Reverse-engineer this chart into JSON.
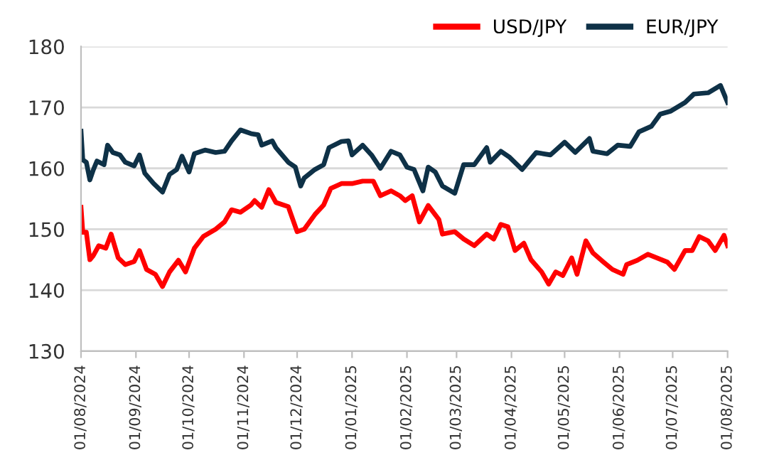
{
  "chart_data": {
    "type": "line",
    "legend": "top right",
    "grid": "y",
    "line_style": "solid",
    "marker": "none",
    "ylim": [
      130,
      180
    ],
    "yticks": [
      130,
      140,
      150,
      160,
      170,
      180
    ],
    "xlim": [
      "2024-08-01",
      "2025-08-01"
    ],
    "xticks": [
      {
        "value": "2024-08-01",
        "label": "01/08/2024"
      },
      {
        "value": "2024-09-01",
        "label": "01/09/2024"
      },
      {
        "value": "2024-10-01",
        "label": "01/10/2024"
      },
      {
        "value": "2024-11-01",
        "label": "01/11/2024"
      },
      {
        "value": "2024-12-01",
        "label": "01/12/2024"
      },
      {
        "value": "2025-01-01",
        "label": "01/01/2025"
      },
      {
        "value": "2025-02-01",
        "label": "01/02/2025"
      },
      {
        "value": "2025-03-01",
        "label": "01/03/2025"
      },
      {
        "value": "2025-04-01",
        "label": "01/04/2025"
      },
      {
        "value": "2025-05-01",
        "label": "01/05/2025"
      },
      {
        "value": "2025-06-01",
        "label": "01/06/2025"
      },
      {
        "value": "2025-07-01",
        "label": "01/07/2025"
      },
      {
        "value": "2025-08-01",
        "label": "01/08/2025"
      }
    ],
    "series": [
      {
        "name": "USD/JPY",
        "color": "#ff0000",
        "x": [
          "2024-08-01",
          "2024-08-02",
          "2024-08-04",
          "2024-08-06",
          "2024-08-08",
          "2024-08-11",
          "2024-08-15",
          "2024-08-18",
          "2024-08-22",
          "2024-08-26",
          "2024-08-31",
          "2024-09-03",
          "2024-09-07",
          "2024-09-12",
          "2024-09-16",
          "2024-09-20",
          "2024-09-25",
          "2024-09-29",
          "2024-10-04",
          "2024-10-09",
          "2024-10-16",
          "2024-10-21",
          "2024-10-25",
          "2024-10-30",
          "2024-11-05",
          "2024-11-07",
          "2024-11-11",
          "2024-11-15",
          "2024-11-19",
          "2024-11-26",
          "2024-12-01",
          "2024-12-05",
          "2024-12-11",
          "2024-12-16",
          "2024-12-20",
          "2024-12-26",
          "2025-01-01",
          "2025-01-07",
          "2025-01-13",
          "2025-01-17",
          "2025-01-23",
          "2025-01-28",
          "2025-01-31",
          "2025-02-04",
          "2025-02-08",
          "2025-02-13",
          "2025-02-19",
          "2025-02-21",
          "2025-02-28",
          "2025-03-05",
          "2025-03-11",
          "2025-03-18",
          "2025-03-22",
          "2025-03-26",
          "2025-03-30",
          "2025-04-03",
          "2025-04-08",
          "2025-04-12",
          "2025-04-18",
          "2025-04-22",
          "2025-04-26",
          "2025-04-30",
          "2025-05-05",
          "2025-05-08",
          "2025-05-13",
          "2025-05-17",
          "2025-05-23",
          "2025-05-28",
          "2025-06-03",
          "2025-06-05",
          "2025-06-11",
          "2025-06-17",
          "2025-06-23",
          "2025-06-28",
          "2025-07-02",
          "2025-07-08",
          "2025-07-12",
          "2025-07-16",
          "2025-07-21",
          "2025-07-25",
          "2025-07-30",
          "2025-08-01"
        ],
        "values": [
          153.6,
          149.5,
          149.5,
          145,
          145.7,
          147.3,
          146.9,
          149.2,
          145.3,
          144.2,
          144.7,
          146.5,
          143.4,
          142.6,
          140.6,
          143,
          144.9,
          143,
          146.9,
          148.8,
          150,
          151.2,
          153.2,
          152.8,
          154,
          154.7,
          153.6,
          156.5,
          154.4,
          153.7,
          149.6,
          150,
          152.4,
          154,
          156.7,
          157.5,
          157.5,
          157.9,
          157.9,
          155.5,
          156.3,
          155.5,
          154.7,
          155.5,
          151.2,
          153.9,
          151.6,
          149.2,
          149.6,
          148.4,
          147.3,
          149.2,
          148.4,
          150.8,
          150.4,
          146.5,
          147.7,
          145,
          143,
          141,
          143,
          142.4,
          145.3,
          142.6,
          148.1,
          146.1,
          144.6,
          143.4,
          142.6,
          144.2,
          144.9,
          145.9,
          145.2,
          144.6,
          143.4,
          146.5,
          146.5,
          148.8,
          148.1,
          146.5,
          149,
          147.3
        ]
      },
      {
        "name": "EUR/JPY",
        "color": "#0e3147",
        "x": [
          "2024-08-01",
          "2024-08-02",
          "2024-08-04",
          "2024-08-06",
          "2024-08-08",
          "2024-08-10",
          "2024-08-14",
          "2024-08-16",
          "2024-08-19",
          "2024-08-23",
          "2024-08-26",
          "2024-08-31",
          "2024-09-03",
          "2024-09-06",
          "2024-09-11",
          "2024-09-16",
          "2024-09-20",
          "2024-09-24",
          "2024-09-27",
          "2024-10-01",
          "2024-10-04",
          "2024-10-10",
          "2024-10-16",
          "2024-10-21",
          "2024-10-25",
          "2024-10-30",
          "2024-11-05",
          "2024-11-09",
          "2024-11-11",
          "2024-11-17",
          "2024-11-19",
          "2024-11-26",
          "2024-11-30",
          "2024-12-03",
          "2024-12-05",
          "2024-12-11",
          "2024-12-16",
          "2024-12-19",
          "2024-12-26",
          "2024-12-30",
          "2025-01-01",
          "2025-01-07",
          "2025-01-12",
          "2025-01-17",
          "2025-01-23",
          "2025-01-28",
          "2025-02-01",
          "2025-02-05",
          "2025-02-10",
          "2025-02-13",
          "2025-02-17",
          "2025-02-21",
          "2025-02-28",
          "2025-03-05",
          "2025-03-11",
          "2025-03-18",
          "2025-03-20",
          "2025-03-26",
          "2025-03-31",
          "2025-04-07",
          "2025-04-15",
          "2025-04-23",
          "2025-05-01",
          "2025-05-07",
          "2025-05-15",
          "2025-05-17",
          "2025-05-25",
          "2025-05-31",
          "2025-06-07",
          "2025-06-12",
          "2025-06-19",
          "2025-06-24",
          "2025-06-30",
          "2025-07-08",
          "2025-07-13",
          "2025-07-21",
          "2025-07-28",
          "2025-08-01"
        ],
        "values": [
          166.1,
          161.4,
          161,
          158.1,
          159.8,
          161.2,
          160.6,
          163.8,
          162.6,
          162.2,
          161,
          160.4,
          162.2,
          159.2,
          157.5,
          156.1,
          159,
          159.8,
          162,
          159.4,
          162.4,
          163,
          162.6,
          162.8,
          164.5,
          166.3,
          165.7,
          165.5,
          163.8,
          164.5,
          163.4,
          161,
          160.2,
          157.1,
          158.4,
          159.8,
          160.6,
          163.4,
          164.4,
          164.5,
          162.2,
          163.8,
          162.2,
          160,
          162.8,
          162.2,
          160.2,
          159.8,
          156.3,
          160.2,
          159.4,
          157.1,
          155.9,
          160.6,
          160.6,
          163.4,
          161,
          162.8,
          161.8,
          159.8,
          162.6,
          162.2,
          164.3,
          162.6,
          164.9,
          162.8,
          162.4,
          163.8,
          163.6,
          166,
          166.9,
          168.9,
          169.4,
          170.8,
          172.2,
          172.4,
          173.6,
          170.8
        ]
      }
    ]
  }
}
